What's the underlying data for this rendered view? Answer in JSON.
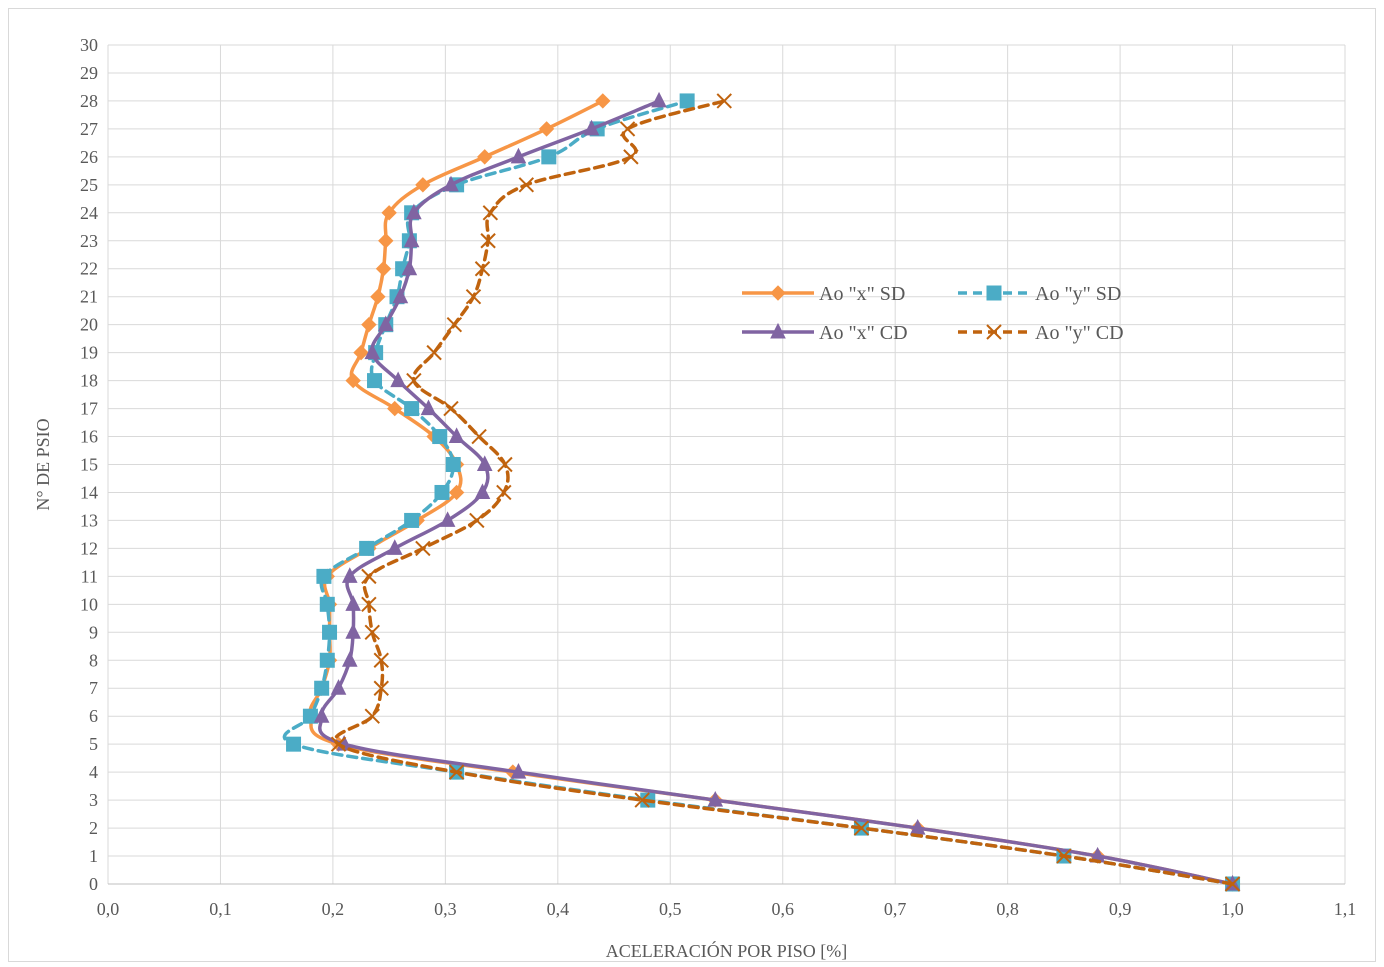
{
  "chart_data": {
    "type": "line",
    "title": "",
    "xlabel": "ACELERACIÓN POR PISO [%]",
    "ylabel": "N° DE PSIO",
    "xlim": [
      0,
      1.1
    ],
    "ylim": [
      0,
      30
    ],
    "x_ticks": [
      "0,0",
      "0,1",
      "0,2",
      "0,3",
      "0,4",
      "0,5",
      "0,6",
      "0,7",
      "0,8",
      "0,9",
      "1,0",
      "1,1"
    ],
    "y_ticks": [
      "0",
      "1",
      "2",
      "3",
      "4",
      "5",
      "6",
      "7",
      "8",
      "9",
      "10",
      "11",
      "12",
      "13",
      "14",
      "15",
      "16",
      "17",
      "18",
      "19",
      "20",
      "21",
      "22",
      "23",
      "24",
      "25",
      "26",
      "27",
      "28",
      "29",
      "30"
    ],
    "grid": true,
    "legend_position": "top-right",
    "y": [
      0,
      1,
      2,
      3,
      4,
      5,
      6,
      7,
      8,
      9,
      10,
      11,
      12,
      13,
      14,
      15,
      16,
      17,
      18,
      19,
      20,
      21,
      22,
      23,
      24,
      25,
      26,
      27,
      28
    ],
    "series": [
      {
        "name": "Ao \"x\" SD",
        "color": "#F79646",
        "line_style": "solid",
        "marker": "diamond",
        "x": [
          1.0,
          0.88,
          0.72,
          0.54,
          0.36,
          0.205,
          0.18,
          0.19,
          0.197,
          0.197,
          0.197,
          0.195,
          0.232,
          0.275,
          0.31,
          0.31,
          0.29,
          0.255,
          0.218,
          0.225,
          0.232,
          0.24,
          0.245,
          0.247,
          0.25,
          0.28,
          0.335,
          0.39,
          0.44
        ]
      },
      {
        "name": "Ao \"y\" SD",
        "color": "#4BACC6",
        "line_style": "dashed",
        "marker": "square",
        "x": [
          1.0,
          0.85,
          0.67,
          0.48,
          0.31,
          0.165,
          0.18,
          0.19,
          0.195,
          0.197,
          0.195,
          0.192,
          0.23,
          0.27,
          0.297,
          0.307,
          0.295,
          0.27,
          0.237,
          0.238,
          0.247,
          0.257,
          0.262,
          0.268,
          0.27,
          0.31,
          0.392,
          0.435,
          0.515
        ]
      },
      {
        "name": "Ao \"x\" CD",
        "color": "#8064A2",
        "line_style": "solid",
        "marker": "triangle",
        "x": [
          1.0,
          0.88,
          0.72,
          0.54,
          0.365,
          0.21,
          0.19,
          0.205,
          0.215,
          0.218,
          0.218,
          0.215,
          0.255,
          0.302,
          0.333,
          0.335,
          0.31,
          0.285,
          0.258,
          0.235,
          0.247,
          0.26,
          0.268,
          0.27,
          0.272,
          0.305,
          0.365,
          0.43,
          0.49
        ]
      },
      {
        "name": "Ao \"y\" CD",
        "color": "#C0630E",
        "line_style": "dashed",
        "marker": "x",
        "x": [
          1.0,
          0.85,
          0.67,
          0.475,
          0.31,
          0.205,
          0.235,
          0.243,
          0.243,
          0.235,
          0.232,
          0.232,
          0.28,
          0.328,
          0.352,
          0.353,
          0.33,
          0.305,
          0.272,
          0.29,
          0.308,
          0.325,
          0.333,
          0.338,
          0.34,
          0.372,
          0.465,
          0.462,
          0.548
        ]
      }
    ]
  }
}
